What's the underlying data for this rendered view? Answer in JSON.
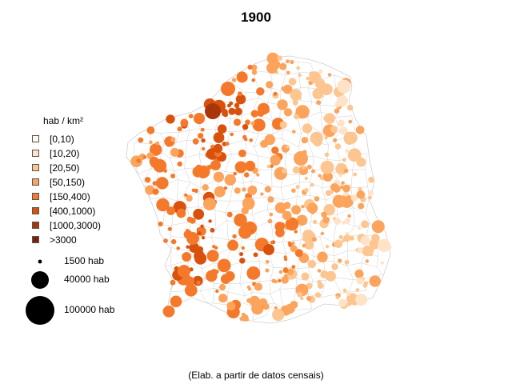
{
  "title": "1900",
  "legend": {
    "title": "hab / km²",
    "classes": [
      {
        "label": "[0,10)",
        "color": "#fff7ec"
      },
      {
        "label": "[10,20)",
        "color": "#fee3c8"
      },
      {
        "label": "[20,50)",
        "color": "#fdc590"
      },
      {
        "label": "[50,150)",
        "color": "#fca35c"
      },
      {
        "label": "[150,400)",
        "color": "#f5792b"
      },
      {
        "label": "[400,1000)",
        "color": "#d9520d"
      },
      {
        "label": "[1000,3000)",
        "color": "#a8360a"
      },
      {
        "label": ">3000",
        "color": "#7a2204"
      }
    ]
  },
  "size_legend": [
    {
      "label": "1500 hab",
      "population": 1500
    },
    {
      "label": "40000 hab",
      "population": 40000
    },
    {
      "label": "100000 hab",
      "population": 100000
    }
  ],
  "credit": "(Elab. a partir de datos censais)",
  "colors": {
    "boundary": "#cfcfcf",
    "dot_outline": "none",
    "background": "#ffffff"
  }
}
